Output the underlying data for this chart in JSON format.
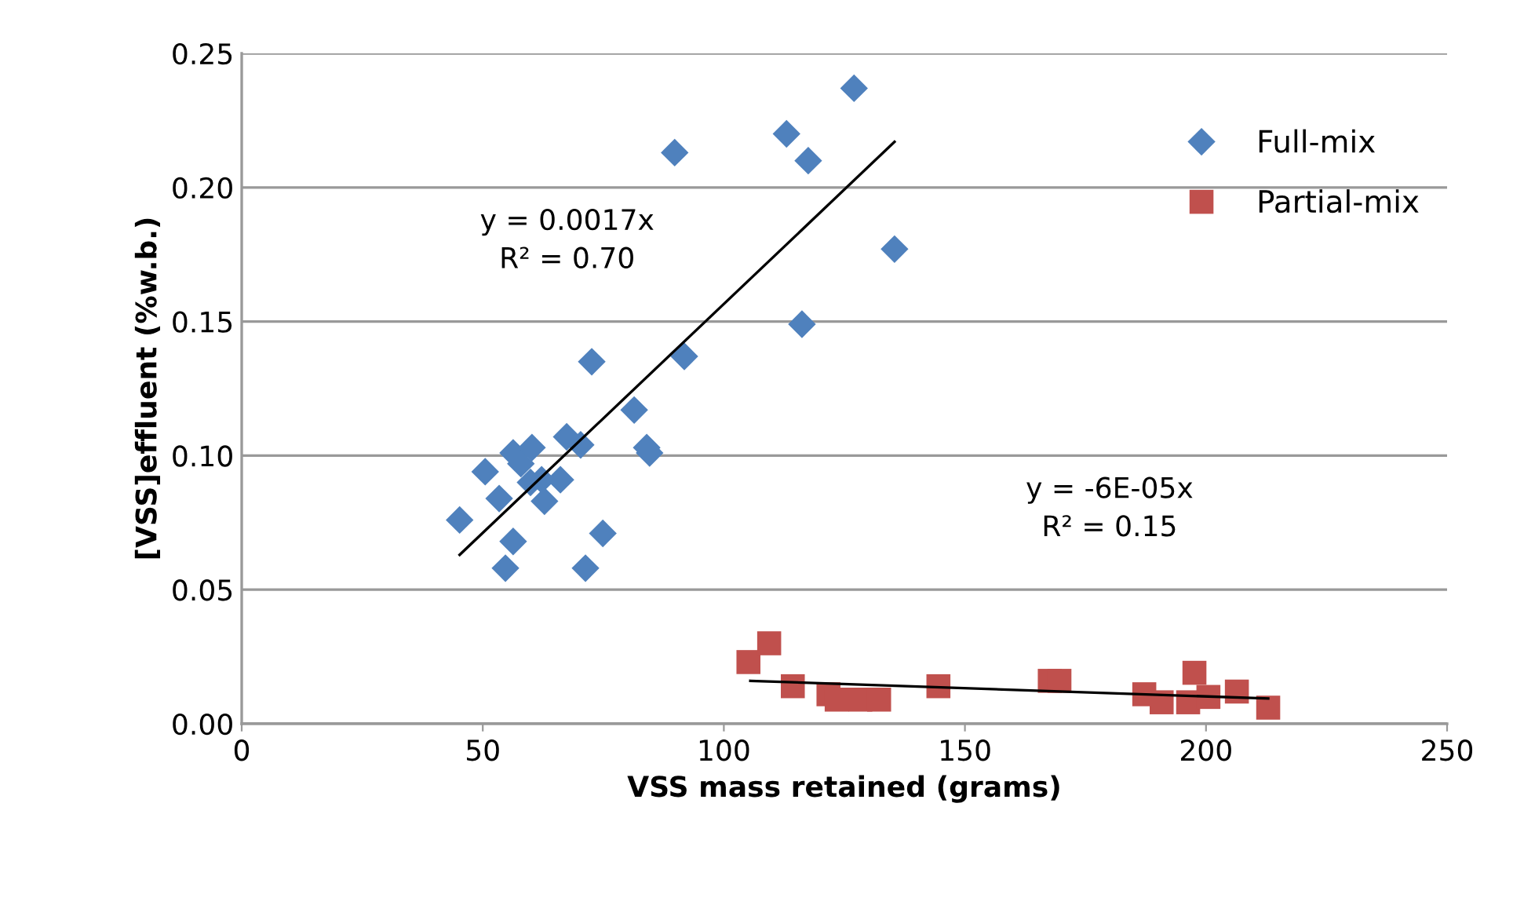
{
  "chart_data": {
    "type": "scatter",
    "xlabel": "VSS mass retained (grams)",
    "ylabel": "[VSS]effluent (%w.b.)",
    "xlim": [
      0,
      250
    ],
    "xticks": [
      0,
      50,
      100,
      150,
      200,
      250
    ],
    "ylim": [
      0,
      0.25
    ],
    "yticks": [
      {
        "value": 0,
        "label": "0.00"
      },
      {
        "value": 0.05,
        "label": "0.05"
      },
      {
        "value": 0.1,
        "label": "0.10"
      },
      {
        "value": 0.15,
        "label": "0.15"
      },
      {
        "value": 0.2,
        "label": "0.20"
      },
      {
        "value": 0.25,
        "label": "0.25"
      }
    ],
    "grid": "y",
    "legend": "right",
    "annotations": [
      "y = 0.0017x\nR² = 0.70",
      "y = -6E-05x\nR² = 0.15"
    ],
    "series": [
      {
        "name": "Full-mix",
        "color": "#4f81bd",
        "marker": "diamond",
        "x": [
          45.2,
          50.5,
          53.4,
          54.7,
          56.3,
          56.3,
          57.9,
          60.2,
          59.9,
          62.2,
          62.8,
          66.1,
          67.4,
          70.3,
          71.3,
          72.6,
          74.9,
          81.4,
          84.0,
          84.6,
          91.8,
          89.8,
          113.0,
          117.5,
          116.2,
          127.0,
          135.4
        ],
        "values": [
          0.076,
          0.094,
          0.084,
          0.058,
          0.068,
          0.101,
          0.097,
          0.103,
          0.09,
          0.091,
          0.083,
          0.091,
          0.107,
          0.104,
          0.058,
          0.135,
          0.071,
          0.117,
          0.103,
          0.101,
          0.137,
          0.213,
          0.22,
          0.21,
          0.149,
          0.237,
          0.177
        ]
      },
      {
        "name": "Partial-mix",
        "color": "#c0504d",
        "marker": "square",
        "x": [
          105.1,
          109.4,
          114.3,
          121.7,
          123.4,
          128.3,
          132.2,
          144.5,
          167.6,
          169.6,
          187.2,
          190.8,
          196.3,
          197.6,
          200.5,
          206.4,
          212.9
        ],
        "values": [
          0.023,
          0.03,
          0.014,
          0.011,
          0.009,
          0.009,
          0.009,
          0.014,
          0.016,
          0.016,
          0.011,
          0.008,
          0.008,
          0.019,
          0.01,
          0.012,
          0.006
        ]
      },
      {
        "type": "line",
        "color": "#000000",
        "x": [
          45.2,
          135.4
        ],
        "values": [
          0.063,
          0.217
        ]
      },
      {
        "type": "line",
        "color": "#000000",
        "x": [
          105.5,
          212.9
        ],
        "values": [
          0.016,
          0.0094
        ]
      }
    ]
  }
}
